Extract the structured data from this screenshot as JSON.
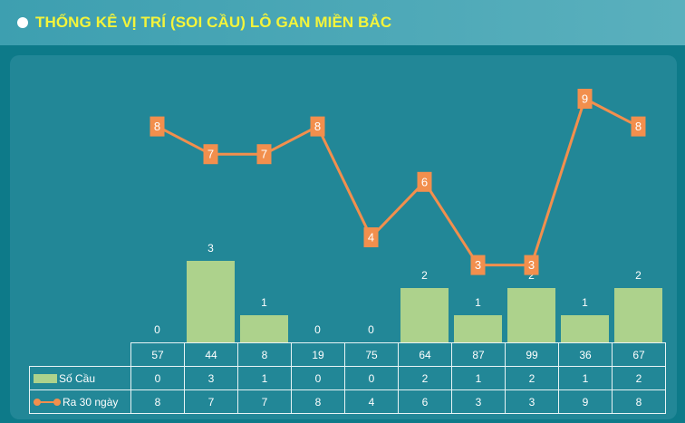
{
  "header": {
    "title": "THỐNG KÊ VỊ TRÍ (SOI CẦU) LÔ GAN MIỀN BẮC"
  },
  "colors": {
    "page_background": "#0d7a89",
    "panel_background": "#228797",
    "title": "#f4f43a",
    "bar": "#add28c",
    "line": "#f28f4d"
  },
  "chart_data": {
    "type": "bar",
    "categories": [
      "57",
      "44",
      "8",
      "19",
      "75",
      "64",
      "87",
      "99",
      "36",
      "67"
    ],
    "series": [
      {
        "name": "Số Cầu",
        "type": "bar",
        "values": [
          0,
          3,
          1,
          0,
          0,
          2,
          1,
          2,
          1,
          2
        ]
      },
      {
        "name": "Ra 30 ngày",
        "type": "line",
        "values": [
          8,
          7,
          7,
          8,
          4,
          6,
          3,
          3,
          9,
          8
        ]
      }
    ],
    "legend": "table-left",
    "grid": false
  }
}
